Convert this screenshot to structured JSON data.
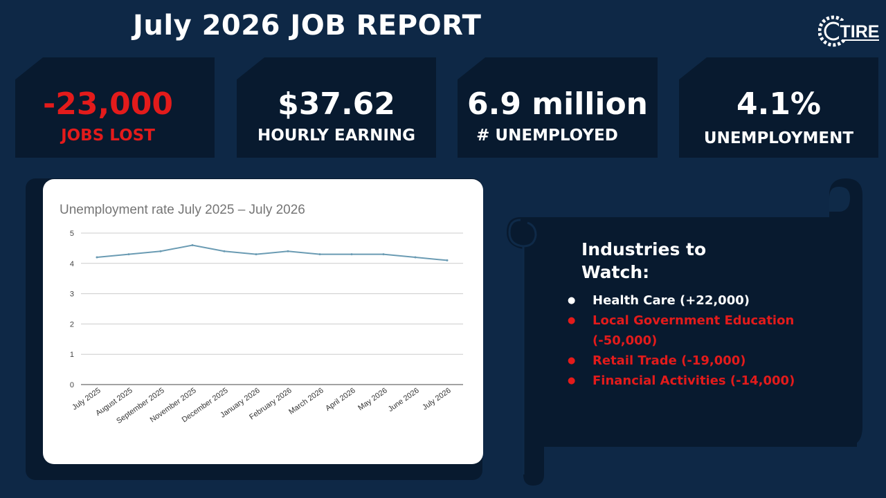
{
  "page": {
    "title": "July 2026 JOB REPORT"
  },
  "logo": {
    "text": "TIRE",
    "icon": "tire-icon"
  },
  "stats": [
    {
      "value": "-23,000",
      "label": "JOBS LOST",
      "color": "#e31b1b"
    },
    {
      "value": "$37.62",
      "label": "HOURLY EARNING",
      "color": "#ffffff"
    },
    {
      "value": "6.9 million",
      "label": "# UNEMPLOYED",
      "color": "#ffffff"
    },
    {
      "value": "4.1%",
      "label": "UNEMPLOYMENT",
      "color": "#ffffff"
    }
  ],
  "chart_data": {
    "type": "line",
    "title": "Unemployment rate July 2025 – July 2026",
    "categories": [
      "July 2025",
      "August 2025",
      "September 2025",
      "November 2025",
      "December 2025",
      "January 2026",
      "February 2026",
      "March 2026",
      "April 2026",
      "May 2026",
      "June 2026",
      "July 2026"
    ],
    "series": [
      {
        "values": [
          4.2,
          4.3,
          4.4,
          4.6,
          4.4,
          4.3,
          4.4,
          4.3,
          4.3,
          4.3,
          4.2,
          4.1
        ],
        "color": "#6a9bb3"
      }
    ],
    "ylim": [
      0,
      5
    ],
    "yticks": [
      "0",
      "1",
      "2",
      "3",
      "4",
      "5"
    ],
    "xlabel": "",
    "ylabel": "",
    "grid": true,
    "legend": "none"
  },
  "industries": {
    "title_line1": "Industries to",
    "title_line2": "Watch:",
    "items": [
      {
        "label": "Health Care  (+22,000)",
        "trend": "up"
      },
      {
        "label": "Local Government Education (-50,000)",
        "trend": "down"
      },
      {
        "label": "Retail Trade (-19,000)",
        "trend": "down"
      },
      {
        "label": "Financial Activities  (-14,000)",
        "trend": "down"
      }
    ]
  },
  "colors": {
    "background": "#0e2846",
    "card": "#081a2f",
    "negative": "#e31b1b",
    "line": "#6a9bb3"
  }
}
